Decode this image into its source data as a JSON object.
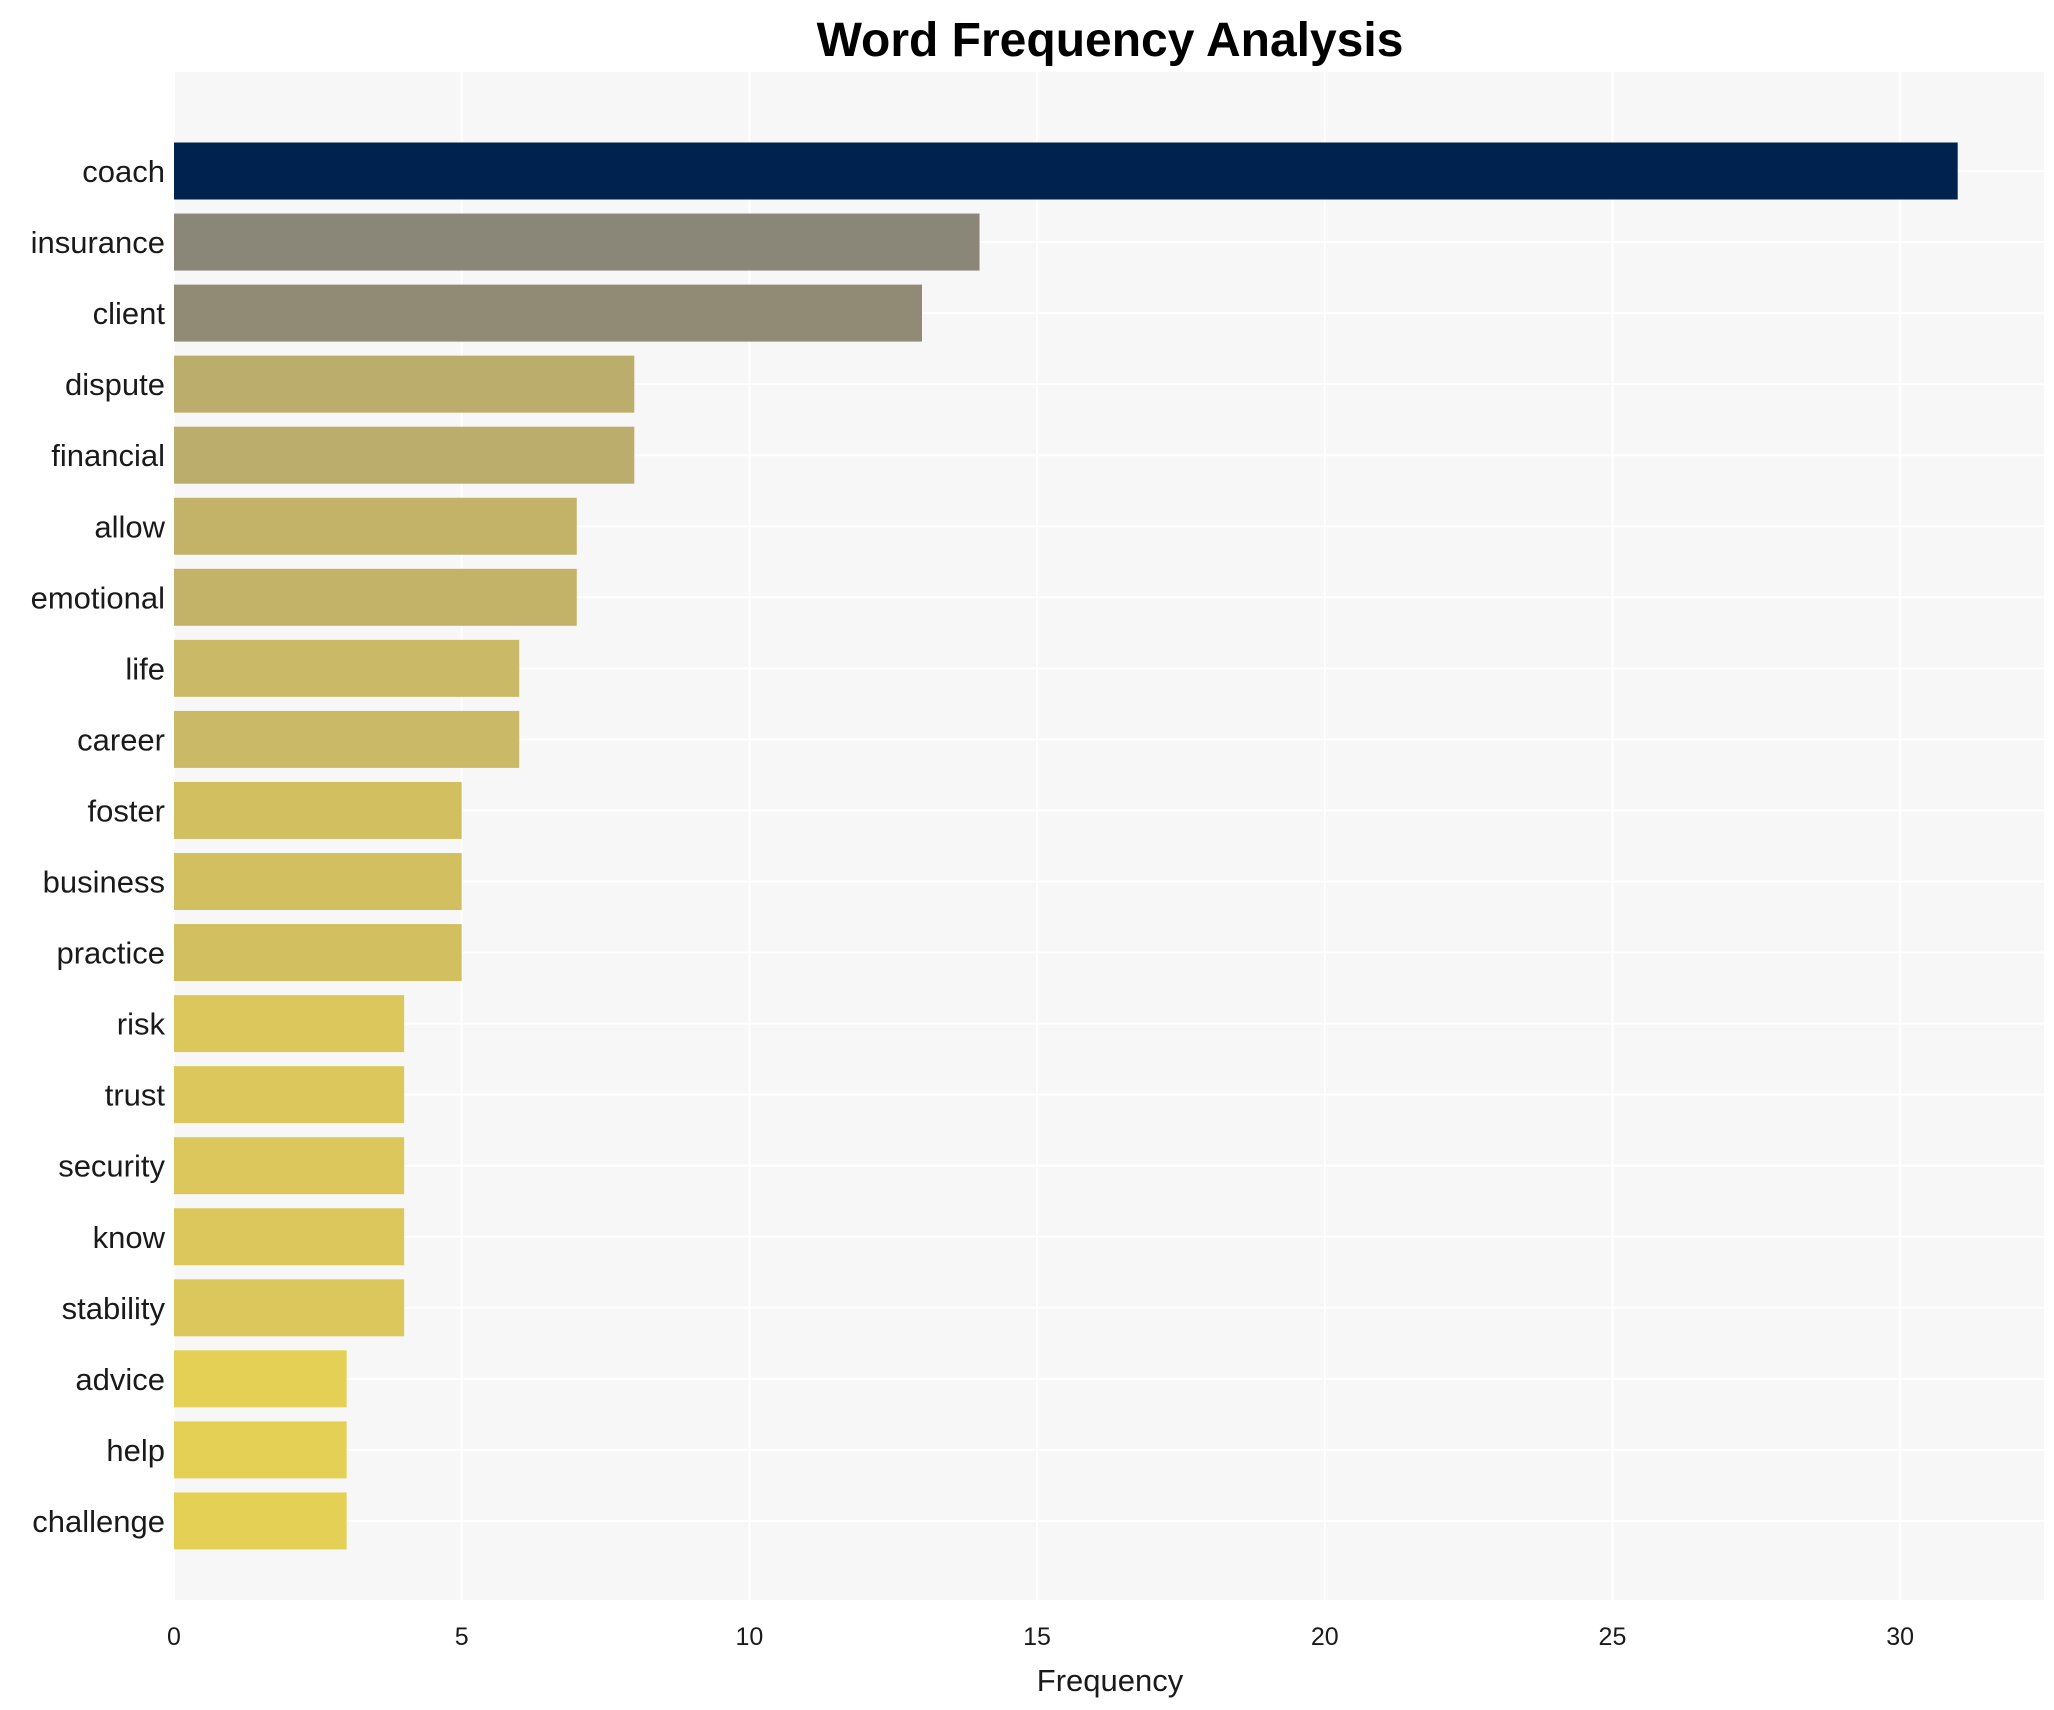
{
  "chart_data": {
    "type": "bar",
    "orientation": "horizontal",
    "title": "Word Frequency Analysis",
    "xlabel": "Frequency",
    "ylabel": "",
    "xlim": [
      0,
      32.5
    ],
    "xticks": [
      0,
      5,
      10,
      15,
      20,
      25,
      30
    ],
    "grid": true,
    "legend": "none",
    "plot_background": "#f7f7f7",
    "categories": [
      "coach",
      "insurance",
      "client",
      "dispute",
      "financial",
      "allow",
      "emotional",
      "life",
      "career",
      "foster",
      "business",
      "practice",
      "risk",
      "trust",
      "security",
      "know",
      "stability",
      "advice",
      "help",
      "challenge"
    ],
    "values": [
      31,
      14,
      13,
      8,
      8,
      7,
      7,
      6,
      6,
      5,
      5,
      5,
      4,
      4,
      4,
      4,
      4,
      3,
      3,
      3
    ],
    "colors": [
      "#00224e",
      "#8a8678",
      "#918b76",
      "#bbad6c",
      "#bbad6c",
      "#c3b369",
      "#c3b369",
      "#cab967",
      "#cab967",
      "#d2c060",
      "#d2c060",
      "#d2c060",
      "#dbc75b",
      "#dbc75b",
      "#dbc75b",
      "#dbc75b",
      "#dbc75b",
      "#e4d054",
      "#e4d054",
      "#e4d054"
    ]
  }
}
